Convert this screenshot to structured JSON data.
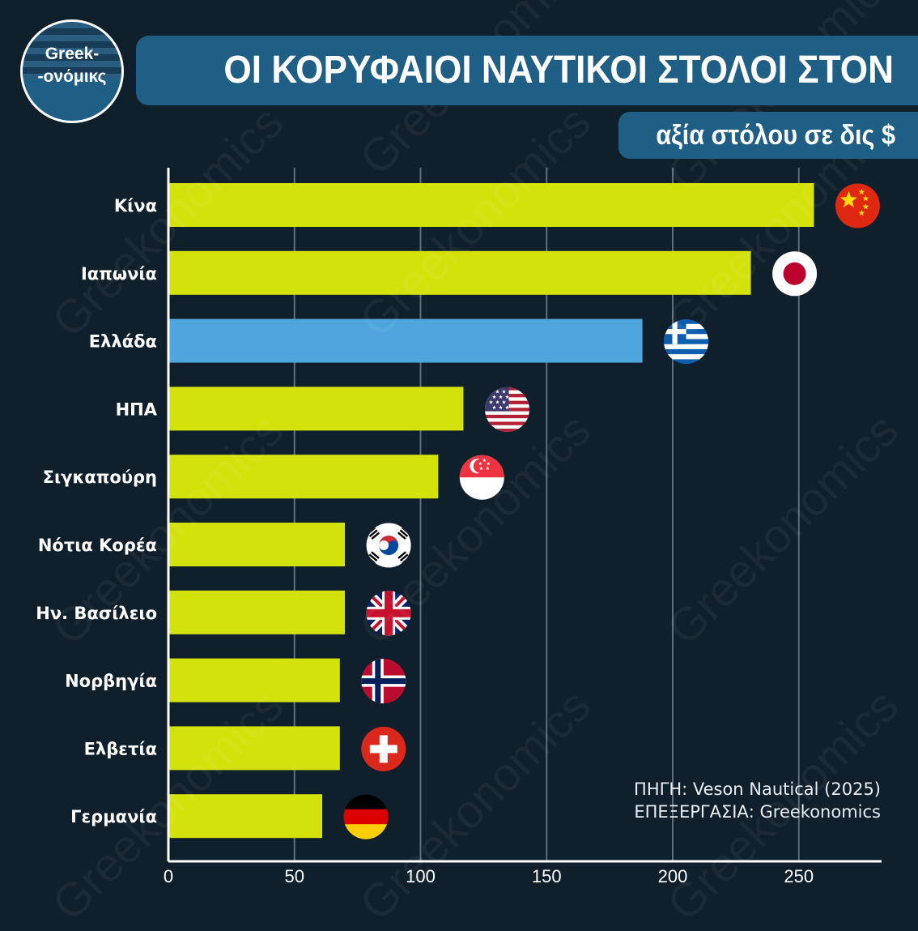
{
  "header": {
    "title": "ΟΙ ΚΟΡΥΦΑΙΟΙ ΝΑΥΤΙΚΟΙ ΣΤΟΛΟΙ ΣΤΟΝ ΚΟΣΜΟ",
    "subtitle": "αξία στόλου σε δις $",
    "logo_line1": "Greek-",
    "logo_line2": "-ονόμικς"
  },
  "footer": {
    "source": "ΠΗΓΗ: Veson Nautical (2025)",
    "processing": "ΕΠΕΞΕΡΓΑΣΙΑ: Greekonomics"
  },
  "watermark": "Greekonomics",
  "colors": {
    "background": "#0f1f2b",
    "bar": "#d4e20c",
    "highlight_bar": "#4fa6dc",
    "header": "#1f5f85",
    "grid": "#5d6f7a"
  },
  "chart_data": {
    "type": "bar",
    "orientation": "horizontal",
    "categories": [
      "Κίνα",
      "Ιαπωνία",
      "Ελλάδα",
      "ΗΠΑ",
      "Σιγκαπούρη",
      "Νότια Κορέα",
      "Ην. Βασίλειο",
      "Νορβηγία",
      "Ελβετία",
      "Γερμανία"
    ],
    "values": [
      256,
      231,
      188,
      117,
      107,
      70,
      70,
      68,
      68,
      61
    ],
    "highlight": "Ελλάδα",
    "flags": [
      "china-flag-icon",
      "japan-flag-icon",
      "greece-flag-icon",
      "usa-flag-icon",
      "singapore-flag-icon",
      "south-korea-flag-icon",
      "uk-flag-icon",
      "norway-flag-icon",
      "switzerland-flag-icon",
      "germany-flag-icon"
    ],
    "xlim": [
      0,
      280
    ],
    "xticks": [
      0,
      50,
      100,
      150,
      200,
      250
    ],
    "grid": "vertical",
    "legend": "none"
  }
}
